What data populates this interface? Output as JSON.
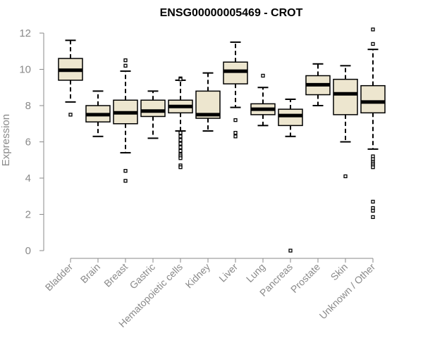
{
  "chart_data": {
    "type": "box",
    "title": "ENSG00000005469 - CROT",
    "ylabel": "Expression",
    "ylim": [
      0,
      12
    ],
    "yticks": [
      0,
      2,
      4,
      6,
      8,
      10,
      12
    ],
    "box_fill": "#ede6cf",
    "box_stroke": "#000000",
    "median_color": "#000000",
    "axis_color": "#8a8a8a",
    "title_color": "#000000",
    "categories": [
      {
        "name": "Bladder",
        "whisker_low": 8.2,
        "q1": 9.4,
        "median": 9.95,
        "q3": 10.6,
        "whisker_high": 11.6,
        "outliers": [
          7.5
        ]
      },
      {
        "name": "Brain",
        "whisker_low": 6.3,
        "q1": 7.1,
        "median": 7.5,
        "q3": 8.0,
        "whisker_high": 8.8,
        "outliers": []
      },
      {
        "name": "Breast",
        "whisker_low": 5.4,
        "q1": 7.0,
        "median": 7.6,
        "q3": 8.3,
        "whisker_high": 9.9,
        "outliers": [
          10.5,
          10.2,
          4.4,
          3.85
        ]
      },
      {
        "name": "Gastric",
        "whisker_low": 6.2,
        "q1": 7.4,
        "median": 7.7,
        "q3": 8.3,
        "whisker_high": 8.8,
        "outliers": []
      },
      {
        "name": "Hematopoietic cells",
        "whisker_low": 6.6,
        "q1": 7.6,
        "median": 7.95,
        "q3": 8.3,
        "whisker_high": 9.4,
        "outliers": [
          9.5,
          9.45,
          6.5,
          6.3,
          6.1,
          5.9,
          5.7,
          5.5,
          5.3,
          5.2,
          5.1,
          4.7,
          4.6
        ]
      },
      {
        "name": "Kidney",
        "whisker_low": 6.6,
        "q1": 7.3,
        "median": 7.5,
        "q3": 8.8,
        "whisker_high": 9.8,
        "outliers": []
      },
      {
        "name": "Liver",
        "whisker_low": 7.9,
        "q1": 9.2,
        "median": 9.9,
        "q3": 10.4,
        "whisker_high": 11.5,
        "outliers": [
          7.2,
          6.5,
          6.3
        ]
      },
      {
        "name": "Lung",
        "whisker_low": 6.9,
        "q1": 7.5,
        "median": 7.8,
        "q3": 8.1,
        "whisker_high": 9.0,
        "outliers": [
          9.65
        ]
      },
      {
        "name": "Pancreas",
        "whisker_low": 6.3,
        "q1": 6.9,
        "median": 7.45,
        "q3": 7.8,
        "whisker_high": 8.35,
        "outliers": [
          0.0
        ]
      },
      {
        "name": "Prostate",
        "whisker_low": 8.0,
        "q1": 8.6,
        "median": 9.15,
        "q3": 9.65,
        "whisker_high": 10.3,
        "outliers": []
      },
      {
        "name": "Skin",
        "whisker_low": 6.0,
        "q1": 7.5,
        "median": 8.65,
        "q3": 9.45,
        "whisker_high": 10.2,
        "outliers": [
          4.1
        ]
      },
      {
        "name": "Unknown / Other",
        "whisker_low": 5.6,
        "q1": 7.6,
        "median": 8.2,
        "q3": 9.1,
        "whisker_high": 11.1,
        "outliers": [
          12.2,
          11.4,
          5.2,
          5.05,
          4.9,
          4.8,
          4.7,
          4.6,
          2.7,
          2.35,
          2.2,
          1.85
        ]
      }
    ]
  }
}
